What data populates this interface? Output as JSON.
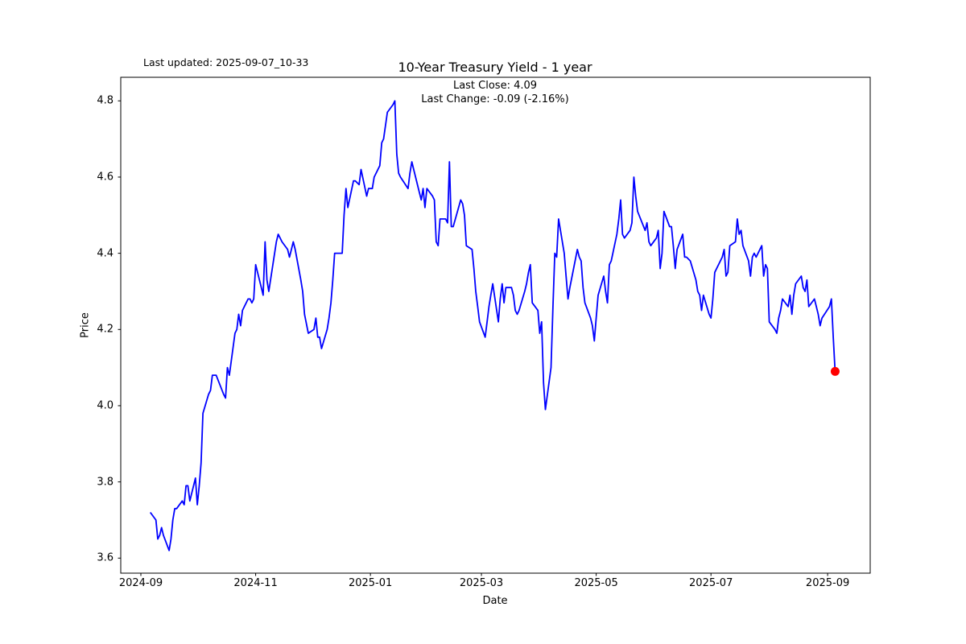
{
  "window": {
    "background": "#ffffff",
    "axis_color": "#000000"
  },
  "header": {
    "last_updated": "Last updated: 2025-09-07_10-33",
    "title": "10-Year Treasury Yield - 1 year",
    "annotation_line1": "Last Close: 4.09",
    "annotation_line2": "Last Change: -0.09 (-2.16%)"
  },
  "chart_data": {
    "type": "line",
    "title": "10-Year Treasury Yield - 1 year",
    "xlabel": "Date",
    "ylabel": "Price",
    "last_close": 4.09,
    "last_change": -0.09,
    "last_change_pct": "-2.16%",
    "line_color": "#0000ff",
    "marker_color": "#ff0000",
    "grid": false,
    "legend": "none",
    "ylim": [
      3.56,
      4.86
    ],
    "y_ticks": [
      "3.6",
      "3.8",
      "4.0",
      "4.2",
      "4.4",
      "4.6",
      "4.8"
    ],
    "x_ticks": [
      "2024-09",
      "2024-11",
      "2025-01",
      "2025-03",
      "2025-05",
      "2025-07",
      "2025-09"
    ],
    "series": [
      {
        "name": "10-Year Treasury Yield",
        "dates": [
          "2024-09-06",
          "2024-09-09",
          "2024-09-10",
          "2024-09-11",
          "2024-09-12",
          "2024-09-13",
          "2024-09-16",
          "2024-09-17",
          "2024-09-18",
          "2024-09-19",
          "2024-09-20",
          "2024-09-23",
          "2024-09-24",
          "2024-09-25",
          "2024-09-26",
          "2024-09-27",
          "2024-09-30",
          "2024-10-01",
          "2024-10-02",
          "2024-10-03",
          "2024-10-04",
          "2024-10-07",
          "2024-10-08",
          "2024-10-09",
          "2024-10-10",
          "2024-10-11",
          "2024-10-15",
          "2024-10-16",
          "2024-10-17",
          "2024-10-18",
          "2024-10-21",
          "2024-10-22",
          "2024-10-23",
          "2024-10-24",
          "2024-10-25",
          "2024-10-28",
          "2024-10-29",
          "2024-10-30",
          "2024-10-31",
          "2024-11-01",
          "2024-11-04",
          "2024-11-05",
          "2024-11-06",
          "2024-11-07",
          "2024-11-08",
          "2024-11-12",
          "2024-11-13",
          "2024-11-14",
          "2024-11-15",
          "2024-11-18",
          "2024-11-19",
          "2024-11-20",
          "2024-11-21",
          "2024-11-22",
          "2024-11-25",
          "2024-11-26",
          "2024-11-27",
          "2024-11-29",
          "2024-12-02",
          "2024-12-03",
          "2024-12-04",
          "2024-12-05",
          "2024-12-06",
          "2024-12-09",
          "2024-12-10",
          "2024-12-11",
          "2024-12-12",
          "2024-12-13",
          "2024-12-16",
          "2024-12-17",
          "2024-12-18",
          "2024-12-19",
          "2024-12-20",
          "2024-12-23",
          "2024-12-24",
          "2024-12-26",
          "2024-12-27",
          "2024-12-30",
          "2024-12-31",
          "2025-01-02",
          "2025-01-03",
          "2025-01-06",
          "2025-01-07",
          "2025-01-08",
          "2025-01-10",
          "2025-01-13",
          "2025-01-14",
          "2025-01-15",
          "2025-01-16",
          "2025-01-17",
          "2025-01-21",
          "2025-01-22",
          "2025-01-23",
          "2025-01-24",
          "2025-01-27",
          "2025-01-28",
          "2025-01-29",
          "2025-01-30",
          "2025-01-31",
          "2025-02-03",
          "2025-02-04",
          "2025-02-05",
          "2025-02-06",
          "2025-02-07",
          "2025-02-10",
          "2025-02-11",
          "2025-02-12",
          "2025-02-13",
          "2025-02-14",
          "2025-02-18",
          "2025-02-19",
          "2025-02-20",
          "2025-02-21",
          "2025-02-24",
          "2025-02-25",
          "2025-02-26",
          "2025-02-27",
          "2025-02-28",
          "2025-03-03",
          "2025-03-04",
          "2025-03-05",
          "2025-03-06",
          "2025-03-07",
          "2025-03-10",
          "2025-03-11",
          "2025-03-12",
          "2025-03-13",
          "2025-03-14",
          "2025-03-17",
          "2025-03-18",
          "2025-03-19",
          "2025-03-20",
          "2025-03-21",
          "2025-03-24",
          "2025-03-25",
          "2025-03-26",
          "2025-03-27",
          "2025-03-28",
          "2025-03-31",
          "2025-04-01",
          "2025-04-02",
          "2025-04-03",
          "2025-04-04",
          "2025-04-07",
          "2025-04-08",
          "2025-04-09",
          "2025-04-10",
          "2025-04-11",
          "2025-04-14",
          "2025-04-15",
          "2025-04-16",
          "2025-04-17",
          "2025-04-21",
          "2025-04-22",
          "2025-04-23",
          "2025-04-24",
          "2025-04-25",
          "2025-04-28",
          "2025-04-29",
          "2025-04-30",
          "2025-05-01",
          "2025-05-02",
          "2025-05-05",
          "2025-05-06",
          "2025-05-07",
          "2025-05-08",
          "2025-05-09",
          "2025-05-12",
          "2025-05-13",
          "2025-05-14",
          "2025-05-15",
          "2025-05-16",
          "2025-05-19",
          "2025-05-20",
          "2025-05-21",
          "2025-05-22",
          "2025-05-23",
          "2025-05-27",
          "2025-05-28",
          "2025-05-29",
          "2025-05-30",
          "2025-06-02",
          "2025-06-03",
          "2025-06-04",
          "2025-06-05",
          "2025-06-06",
          "2025-06-09",
          "2025-06-10",
          "2025-06-11",
          "2025-06-12",
          "2025-06-13",
          "2025-06-16",
          "2025-06-17",
          "2025-06-18",
          "2025-06-20",
          "2025-06-23",
          "2025-06-24",
          "2025-06-25",
          "2025-06-26",
          "2025-06-27",
          "2025-06-30",
          "2025-07-01",
          "2025-07-02",
          "2025-07-03",
          "2025-07-07",
          "2025-07-08",
          "2025-07-09",
          "2025-07-10",
          "2025-07-11",
          "2025-07-14",
          "2025-07-15",
          "2025-07-16",
          "2025-07-17",
          "2025-07-18",
          "2025-07-21",
          "2025-07-22",
          "2025-07-23",
          "2025-07-24",
          "2025-07-25",
          "2025-07-28",
          "2025-07-29",
          "2025-07-30",
          "2025-07-31",
          "2025-08-01",
          "2025-08-04",
          "2025-08-05",
          "2025-08-06",
          "2025-08-07",
          "2025-08-08",
          "2025-08-11",
          "2025-08-12",
          "2025-08-13",
          "2025-08-14",
          "2025-08-15",
          "2025-08-18",
          "2025-08-19",
          "2025-08-20",
          "2025-08-21",
          "2025-08-22",
          "2025-08-25",
          "2025-08-26",
          "2025-08-27",
          "2025-08-28",
          "2025-08-29",
          "2025-09-02",
          "2025-09-03",
          "2025-09-04",
          "2025-09-05"
        ],
        "values": [
          3.72,
          3.7,
          3.65,
          3.66,
          3.68,
          3.66,
          3.62,
          3.65,
          3.7,
          3.73,
          3.73,
          3.75,
          3.74,
          3.79,
          3.79,
          3.75,
          3.81,
          3.74,
          3.79,
          3.85,
          3.98,
          4.03,
          4.04,
          4.08,
          4.08,
          4.08,
          4.03,
          4.02,
          4.1,
          4.08,
          4.19,
          4.2,
          4.24,
          4.21,
          4.25,
          4.28,
          4.28,
          4.27,
          4.28,
          4.37,
          4.31,
          4.29,
          4.43,
          4.33,
          4.3,
          4.43,
          4.45,
          4.44,
          4.43,
          4.41,
          4.39,
          4.41,
          4.43,
          4.41,
          4.33,
          4.3,
          4.24,
          4.19,
          4.2,
          4.23,
          4.18,
          4.18,
          4.15,
          4.2,
          4.23,
          4.27,
          4.33,
          4.4,
          4.4,
          4.4,
          4.5,
          4.57,
          4.52,
          4.59,
          4.59,
          4.58,
          4.62,
          4.55,
          4.57,
          4.57,
          4.6,
          4.63,
          4.69,
          4.7,
          4.77,
          4.79,
          4.8,
          4.66,
          4.61,
          4.6,
          4.57,
          4.61,
          4.64,
          4.62,
          4.56,
          4.54,
          4.57,
          4.52,
          4.57,
          4.55,
          4.54,
          4.43,
          4.42,
          4.49,
          4.49,
          4.48,
          4.64,
          4.47,
          4.47,
          4.54,
          4.53,
          4.5,
          4.42,
          4.41,
          4.36,
          4.3,
          4.26,
          4.22,
          4.18,
          4.22,
          4.26,
          4.29,
          4.32,
          4.22,
          4.28,
          4.32,
          4.27,
          4.31,
          4.31,
          4.29,
          4.25,
          4.24,
          4.25,
          4.3,
          4.32,
          4.35,
          4.37,
          4.27,
          4.25,
          4.19,
          4.22,
          4.06,
          3.99,
          4.1,
          4.26,
          4.4,
          4.39,
          4.49,
          4.4,
          4.34,
          4.28,
          4.31,
          4.41,
          4.39,
          4.38,
          4.31,
          4.27,
          4.23,
          4.21,
          4.17,
          4.23,
          4.29,
          4.34,
          4.3,
          4.27,
          4.37,
          4.38,
          4.45,
          4.49,
          4.54,
          4.45,
          4.44,
          4.46,
          4.48,
          4.6,
          4.55,
          4.51,
          4.46,
          4.48,
          4.43,
          4.42,
          4.44,
          4.46,
          4.36,
          4.4,
          4.51,
          4.47,
          4.47,
          4.42,
          4.36,
          4.41,
          4.45,
          4.39,
          4.39,
          4.38,
          4.33,
          4.3,
          4.29,
          4.25,
          4.29,
          4.24,
          4.23,
          4.28,
          4.35,
          4.39,
          4.41,
          4.34,
          4.35,
          4.42,
          4.43,
          4.49,
          4.45,
          4.46,
          4.42,
          4.38,
          4.34,
          4.39,
          4.4,
          4.39,
          4.42,
          4.34,
          4.37,
          4.36,
          4.22,
          4.2,
          4.19,
          4.23,
          4.25,
          4.28,
          4.26,
          4.29,
          4.24,
          4.29,
          4.32,
          4.34,
          4.31,
          4.3,
          4.33,
          4.26,
          4.28,
          4.26,
          4.24,
          4.21,
          4.23,
          4.26,
          4.28,
          4.18,
          4.09
        ]
      }
    ]
  }
}
